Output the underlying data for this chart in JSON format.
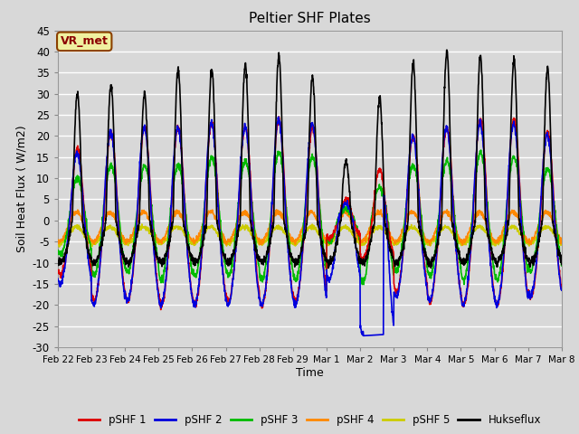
{
  "title": "Peltier SHF Plates",
  "xlabel": "Time",
  "ylabel": "Soil Heat Flux ( W/m2)",
  "ylim": [
    -30,
    45
  ],
  "background_color": "#d8d8d8",
  "plot_bg_color": "#d8d8d8",
  "grid_color": "white",
  "annotation_text": "VR_met",
  "annotation_color": "#8B0000",
  "annotation_bg": "#f0f0a0",
  "annotation_border": "#8B4000",
  "series": {
    "pSHF 1": {
      "color": "#dd0000",
      "lw": 1.2
    },
    "pSHF 2": {
      "color": "#0000dd",
      "lw": 1.2
    },
    "pSHF 3": {
      "color": "#00bb00",
      "lw": 1.2
    },
    "pSHF 4": {
      "color": "#ff8800",
      "lw": 1.2
    },
    "pSHF 5": {
      "color": "#cccc00",
      "lw": 1.2
    },
    "Hukseflux": {
      "color": "#000000",
      "lw": 1.2
    }
  },
  "n_days": 15,
  "xtick_labels": [
    "Feb 22",
    "Feb 23",
    "Feb 24",
    "Feb 25",
    "Feb 26",
    "Feb 27",
    "Feb 28",
    "Feb 29",
    "Mar 1",
    "Mar 2",
    "Mar 3",
    "Mar 4",
    "Mar 5",
    "Mar 6",
    "Mar 7",
    "Mar 8"
  ],
  "pts_per_day": 144
}
